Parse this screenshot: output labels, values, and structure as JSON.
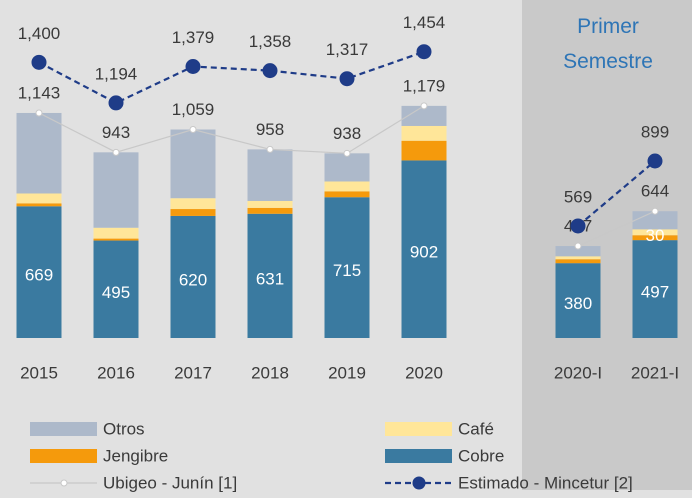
{
  "chart_data": {
    "type": "bar",
    "annotation": "Primer Semestre",
    "categories": [
      "2015",
      "2016",
      "2017",
      "2018",
      "2019",
      "2020",
      null,
      "2020-I",
      "2021-I"
    ],
    "ylim": [
      0,
      1700
    ],
    "series": [
      {
        "name": "Otros",
        "type": "bar",
        "color": "#adb9ca",
        "values": [
          409,
          383,
          349,
          262,
          143,
          102,
          null,
          52,
          92
        ]
      },
      {
        "name": "Café",
        "type": "bar",
        "color": "#ffe699",
        "values": [
          50,
          55,
          55,
          35,
          50,
          75,
          null,
          15,
          30
        ],
        "value_labels": [
          null,
          null,
          null,
          null,
          null,
          null,
          null,
          null,
          "30"
        ]
      },
      {
        "name": "Jengibre",
        "type": "bar",
        "color": "#f59a0c",
        "values": [
          15,
          10,
          35,
          30,
          30,
          100,
          null,
          20,
          25
        ]
      },
      {
        "name": "Cobre",
        "type": "bar",
        "color": "#3a7aa0",
        "values": [
          669,
          495,
          620,
          631,
          715,
          902,
          null,
          380,
          497
        ],
        "value_labels": [
          "669",
          "495",
          "620",
          "631",
          "715",
          "902",
          null,
          "380",
          "497"
        ]
      },
      {
        "name": "Ubigeo - Junín [1]",
        "type": "line",
        "color": "#c8c8c8",
        "values": [
          1143,
          943,
          1059,
          958,
          938,
          1179,
          null,
          467,
          644
        ],
        "value_labels": [
          "1,143",
          "943",
          "1,059",
          "958",
          "938",
          "1,179",
          null,
          "467",
          "644"
        ]
      },
      {
        "name": "Estimado - Mincetur [2]",
        "type": "line",
        "color": "#1f3c88",
        "dashed": true,
        "values": [
          1400,
          1194,
          1379,
          1358,
          1317,
          1454,
          null,
          569,
          899
        ],
        "value_labels": [
          "1,400",
          "1,194",
          "1,379",
          "1,358",
          "1,317",
          "1,454",
          null,
          "569",
          "899"
        ]
      }
    ]
  }
}
